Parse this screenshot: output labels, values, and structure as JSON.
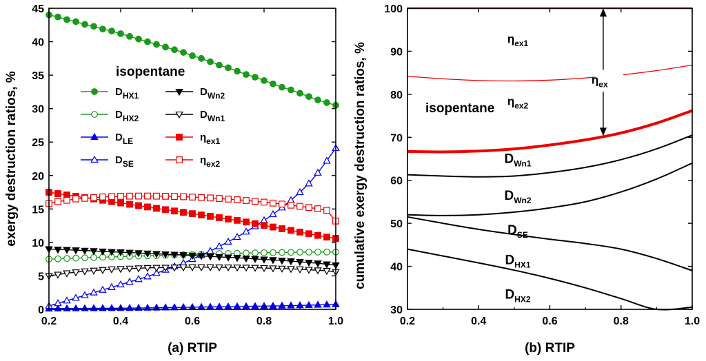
{
  "chart_data": [
    {
      "type": "line",
      "caption": "(a) RTIP",
      "xlabel": "RTIP",
      "ylabel": "exergy destruction ratios, %",
      "xlim": [
        0.2,
        1.0
      ],
      "ylim": [
        0,
        45
      ],
      "xticks": [
        "0.2",
        "0.4",
        "0.6",
        "0.8",
        "1.0"
      ],
      "yticks": [
        "0",
        "5",
        "10",
        "15",
        "20",
        "25",
        "30",
        "35",
        "40",
        "45"
      ],
      "annotation": "isopentane",
      "legend_position": "upper-left, two columns",
      "x": [
        0.2,
        0.225,
        0.25,
        0.275,
        0.3,
        0.325,
        0.35,
        0.375,
        0.4,
        0.425,
        0.45,
        0.475,
        0.5,
        0.525,
        0.55,
        0.575,
        0.6,
        0.625,
        0.65,
        0.675,
        0.7,
        0.725,
        0.75,
        0.775,
        0.8,
        0.825,
        0.85,
        0.875,
        0.9,
        0.925,
        0.95,
        0.975,
        1.0
      ],
      "series": [
        {
          "name": "D_HX1",
          "base": "D",
          "sub": "HX1",
          "color": "#1a9a1a",
          "marker": "circle",
          "filled": true,
          "values": [
            44.0,
            43.7,
            43.3,
            43.0,
            42.6,
            42.3,
            41.9,
            41.6,
            41.2,
            40.8,
            40.4,
            40.0,
            39.6,
            39.2,
            38.8,
            38.4,
            37.9,
            37.5,
            37.0,
            36.5,
            36.1,
            35.6,
            35.1,
            34.7,
            34.2,
            33.7,
            33.2,
            32.8,
            32.3,
            31.8,
            31.3,
            30.9,
            30.5
          ]
        },
        {
          "name": "D_HX2",
          "base": "D",
          "sub": "HX2",
          "color": "#1a9a1a",
          "marker": "circle",
          "filled": false,
          "values": [
            7.5,
            7.55,
            7.6,
            7.65,
            7.7,
            7.75,
            7.8,
            7.84,
            7.88,
            7.92,
            7.96,
            8.0,
            8.04,
            8.08,
            8.12,
            8.16,
            8.2,
            8.24,
            8.28,
            8.32,
            8.35,
            8.38,
            8.41,
            8.44,
            8.46,
            8.48,
            8.5,
            8.52,
            8.54,
            8.55,
            8.56,
            8.57,
            8.57
          ]
        },
        {
          "name": "D_LE",
          "base": "D",
          "sub": "LE",
          "color": "#0000ee",
          "marker": "triangle-up",
          "filled": true,
          "values": [
            0.1,
            0.11,
            0.12,
            0.13,
            0.14,
            0.15,
            0.16,
            0.17,
            0.18,
            0.19,
            0.2,
            0.22,
            0.24,
            0.26,
            0.28,
            0.3,
            0.32,
            0.34,
            0.36,
            0.38,
            0.4,
            0.42,
            0.44,
            0.46,
            0.48,
            0.5,
            0.53,
            0.56,
            0.59,
            0.62,
            0.66,
            0.7,
            0.75
          ]
        },
        {
          "name": "D_SE",
          "base": "D",
          "sub": "SE",
          "color": "#0000ee",
          "marker": "triangle-up",
          "filled": false,
          "values": [
            0.5,
            0.9,
            1.3,
            1.7,
            2.1,
            2.5,
            2.9,
            3.3,
            3.7,
            4.1,
            4.5,
            4.9,
            5.4,
            5.9,
            6.4,
            6.9,
            7.5,
            8.1,
            8.7,
            9.4,
            10.1,
            10.8,
            11.6,
            12.4,
            13.3,
            14.2,
            15.2,
            16.3,
            17.5,
            18.8,
            20.4,
            22.2,
            24.1
          ]
        },
        {
          "name": "D_Wn2",
          "base": "D",
          "sub": "Wn2",
          "color": "#000000",
          "marker": "triangle-down",
          "filled": true,
          "values": [
            9.0,
            8.95,
            8.9,
            8.84,
            8.78,
            8.72,
            8.66,
            8.6,
            8.54,
            8.48,
            8.42,
            8.36,
            8.3,
            8.24,
            8.18,
            8.12,
            8.05,
            7.98,
            7.91,
            7.84,
            7.77,
            7.7,
            7.62,
            7.54,
            7.46,
            7.38,
            7.3,
            7.2,
            7.1,
            7.0,
            6.88,
            6.74,
            6.6
          ]
        },
        {
          "name": "D_Wn1",
          "base": "D",
          "sub": "Wn1",
          "color": "#000000",
          "marker": "triangle-down",
          "filled": false,
          "values": [
            5.0,
            5.2,
            5.4,
            5.55,
            5.7,
            5.8,
            5.9,
            6.0,
            6.05,
            6.1,
            6.15,
            6.2,
            6.22,
            6.24,
            6.26,
            6.28,
            6.3,
            6.3,
            6.3,
            6.29,
            6.28,
            6.27,
            6.25,
            6.22,
            6.18,
            6.14,
            6.1,
            6.05,
            5.99,
            5.92,
            5.84,
            5.76,
            5.6
          ]
        },
        {
          "name": "eta_ex1",
          "base": "η",
          "sub": "ex1",
          "color": "#ee0000",
          "marker": "square",
          "filled": true,
          "values": [
            17.5,
            17.3,
            17.1,
            16.9,
            16.7,
            16.5,
            16.3,
            16.1,
            15.9,
            15.7,
            15.5,
            15.3,
            15.1,
            14.9,
            14.7,
            14.5,
            14.3,
            14.1,
            13.9,
            13.7,
            13.5,
            13.3,
            13.05,
            12.8,
            12.55,
            12.3,
            12.05,
            11.8,
            11.55,
            11.3,
            11.05,
            10.8,
            10.6
          ]
        },
        {
          "name": "eta_ex2",
          "base": "η",
          "sub": "ex2",
          "color": "#ee0000",
          "marker": "square",
          "filled": false,
          "values": [
            15.8,
            16.1,
            16.3,
            16.5,
            16.6,
            16.7,
            16.8,
            16.85,
            16.9,
            16.92,
            16.93,
            16.93,
            16.92,
            16.9,
            16.87,
            16.83,
            16.78,
            16.72,
            16.65,
            16.57,
            16.48,
            16.38,
            16.27,
            16.15,
            16.02,
            15.88,
            15.73,
            15.57,
            15.4,
            15.22,
            15.03,
            14.8,
            13.2
          ]
        }
      ]
    },
    {
      "type": "line",
      "caption": "(b) RTIP",
      "xlabel": "RTIP",
      "ylabel": "cumulative exergy destruction ratios, %",
      "xlim": [
        0.2,
        1.0
      ],
      "ylim": [
        30,
        100
      ],
      "xticks": [
        "0.2",
        "0.4",
        "0.6",
        "0.8",
        "1.0"
      ],
      "yticks": [
        "30",
        "40",
        "50",
        "60",
        "70",
        "80",
        "90",
        "100"
      ],
      "annotation": "isopentane",
      "x": [
        0.2,
        0.3,
        0.4,
        0.5,
        0.6,
        0.7,
        0.8,
        0.9,
        1.0
      ],
      "series": [
        {
          "name": "boundary_HX2",
          "color": "#000000",
          "width": 2,
          "values": [
            44.0,
            42.4,
            40.8,
            39.1,
            37.2,
            35.0,
            32.5,
            30.0,
            30.5
          ]
        },
        {
          "name": "boundary_HX1",
          "color": "#000000",
          "width": 2,
          "values": [
            51.5,
            50.0,
            48.6,
            47.4,
            46.3,
            45.3,
            44.0,
            41.8,
            39.0
          ]
        },
        {
          "name": "boundary_SE",
          "color": "#000000",
          "width": 2,
          "values": [
            52.0,
            51.8,
            52.0,
            52.6,
            53.6,
            55.0,
            57.3,
            60.3,
            64.0
          ]
        },
        {
          "name": "boundary_Wn2",
          "color": "#000000",
          "width": 2,
          "values": [
            61.3,
            61.0,
            60.8,
            61.0,
            61.8,
            63.0,
            64.8,
            67.3,
            70.5
          ]
        },
        {
          "name": "boundary_Wn1",
          "color": "#ee0000",
          "width": 4,
          "values": [
            66.7,
            66.6,
            66.8,
            67.3,
            68.2,
            69.4,
            71.0,
            73.3,
            76.2
          ]
        },
        {
          "name": "boundary_ex2",
          "color": "#ee0000",
          "width": 1.3,
          "values": [
            84.2,
            83.6,
            83.2,
            83.1,
            83.3,
            83.8,
            84.5,
            85.5,
            86.8
          ]
        },
        {
          "name": "boundary_ex1",
          "color": "#ee0000",
          "width": 2.5,
          "values": [
            100,
            100,
            100,
            100,
            100,
            100,
            100,
            100,
            100
          ]
        }
      ],
      "region_labels": [
        {
          "base": "η",
          "sub": "ex1",
          "x": 0.51,
          "y": 92
        },
        {
          "base": "η",
          "sub": "ex",
          "x": 0.74,
          "y": 82.5
        },
        {
          "base": "η",
          "sub": "ex2",
          "x": 0.51,
          "y": 77.5
        },
        {
          "base": "D",
          "sub": "Wn1",
          "x": 0.51,
          "y": 64
        },
        {
          "base": "D",
          "sub": "Wn2",
          "x": 0.51,
          "y": 55.5
        },
        {
          "base": "D",
          "sub": "SE",
          "x": 0.51,
          "y": 47.5
        },
        {
          "base": "D",
          "sub": "HX1",
          "x": 0.51,
          "y": 40.5
        },
        {
          "base": "D",
          "sub": "HX2",
          "x": 0.51,
          "y": 32.5
        }
      ],
      "arrow": {
        "x": 0.75,
        "from": 100,
        "to": 70.3
      }
    }
  ]
}
